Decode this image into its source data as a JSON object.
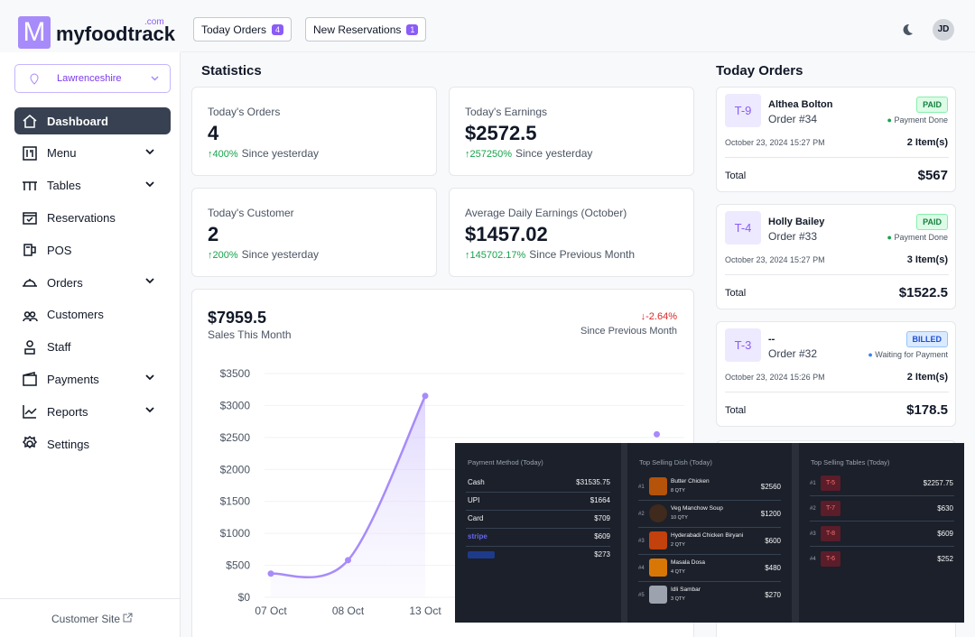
{
  "header": {
    "logo_letter": "M",
    "logo_text": "myfoodtrack",
    "logo_sup": ".com",
    "buttons": [
      {
        "label": "Today Orders",
        "count": 4
      },
      {
        "label": "New Reservations",
        "count": 1
      }
    ],
    "avatar": "JD"
  },
  "sidebar": {
    "location": "Lawrenceshire",
    "items": [
      {
        "label": "Dashboard"
      },
      {
        "label": "Menu"
      },
      {
        "label": "Tables"
      },
      {
        "label": "Reservations"
      },
      {
        "label": "POS"
      },
      {
        "label": "Orders"
      },
      {
        "label": "Customers"
      },
      {
        "label": "Staff"
      },
      {
        "label": "Payments"
      },
      {
        "label": "Reports"
      },
      {
        "label": "Settings"
      }
    ],
    "footer": "Customer Site"
  },
  "statistics": {
    "title": "Statistics",
    "cards": [
      {
        "label": "Today's Orders",
        "value": "4",
        "change": "400%",
        "note": "Since yesterday"
      },
      {
        "label": "Today's Earnings",
        "value": "$2572.5",
        "change": "257250%",
        "note": "Since yesterday"
      },
      {
        "label": "Today's Customer",
        "value": "2",
        "change": "200%",
        "note": "Since yesterday"
      },
      {
        "label": "Average Daily Earnings (October)",
        "value": "$1457.02",
        "change": "145702.17%",
        "note": "Since Previous Month"
      }
    ]
  },
  "sales": {
    "value": "$7959.5",
    "label": "Sales This Month",
    "change": "-2.64%",
    "change_note": "Since Previous Month",
    "chart_data": {
      "type": "line",
      "categories": [
        "07 Oct",
        "08 Oct",
        "13 Oct",
        null,
        null,
        null
      ],
      "values": [
        370,
        580,
        3150,
        null,
        null,
        2550
      ],
      "color": "#a78bfa",
      "ylim": [
        0,
        3500
      ],
      "yticks": [
        {
          "value": 0,
          "label": "$0"
        },
        {
          "value": 500,
          "label": "$500"
        },
        {
          "value": 1000,
          "label": "$1000"
        },
        {
          "value": 1500,
          "label": "$1500"
        },
        {
          "value": 2000,
          "label": "$2000"
        },
        {
          "value": 2500,
          "label": "$2500"
        },
        {
          "value": 3000,
          "label": "$3000"
        },
        {
          "value": 3500,
          "label": "$3500"
        }
      ],
      "grid": true
    }
  },
  "today_orders": {
    "title": "Today Orders",
    "total_label": "Total",
    "orders": [
      {
        "table": "T-9",
        "customer": "Althea Bolton",
        "order_no": "Order #34",
        "status": "PAID",
        "payment_status": "Payment Done",
        "time": "October 23, 2024 15:27 PM",
        "items": "2 Item(s)",
        "total": "$567"
      },
      {
        "table": "T-4",
        "customer": "Holly Bailey",
        "order_no": "Order #33",
        "status": "PAID",
        "payment_status": "Payment Done",
        "time": "October 23, 2024 15:27 PM",
        "items": "3 Item(s)",
        "total": "$1522.5"
      },
      {
        "table": "T-3",
        "customer": "--",
        "order_no": "Order #32",
        "status": "BILLED",
        "payment_status": "Waiting for Payment",
        "time": "October 23, 2024 15:26 PM",
        "items": "2 Item(s)",
        "total": "$178.5"
      }
    ]
  },
  "overlay": {
    "payment": {
      "title": "Payment Method (Today)",
      "rows": [
        {
          "method": "Cash",
          "amount": "$31535.75"
        },
        {
          "method": "UPI",
          "amount": "$1664"
        },
        {
          "method": "Card",
          "amount": "$709"
        },
        {
          "method": "stripe",
          "amount": "$609"
        },
        {
          "amount": "$273"
        }
      ]
    },
    "dishes": {
      "title": "Top Selling Dish (Today)",
      "rows": [
        {
          "rank": "#1",
          "name": "Butter Chicken",
          "qty": "8 QTY",
          "amount": "$2560"
        },
        {
          "rank": "#2",
          "name": "Veg Manchow Soup",
          "qty": "10 QTY",
          "amount": "$1200"
        },
        {
          "rank": "#3",
          "name": "Hyderabadi Chicken Biryani",
          "qty": "2 QTY",
          "amount": "$600"
        },
        {
          "rank": "#4",
          "name": "Masala Dosa",
          "qty": "4 QTY",
          "amount": "$480"
        },
        {
          "rank": "#5",
          "name": "Idli Sambar",
          "qty": "3 QTY",
          "amount": "$270"
        }
      ]
    },
    "tables": {
      "title": "Top Selling Tables (Today)",
      "rows": [
        {
          "rank": "#1",
          "table": "T-5",
          "amount": "$2257.75"
        },
        {
          "rank": "#2",
          "table": "T-7",
          "amount": "$630"
        },
        {
          "rank": "#3",
          "table": "T-8",
          "amount": "$609"
        },
        {
          "rank": "#4",
          "table": "T-6",
          "amount": "$252"
        }
      ]
    }
  }
}
